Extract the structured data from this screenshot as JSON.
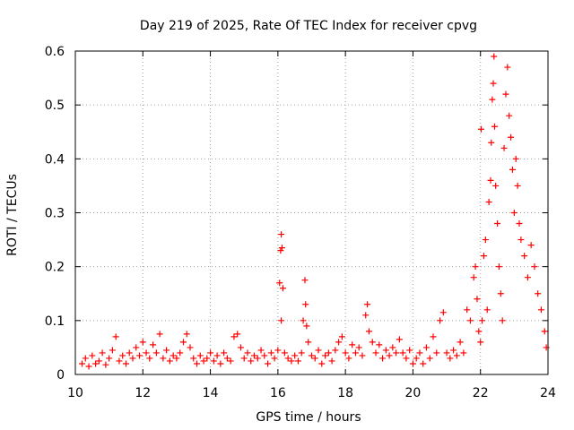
{
  "chart_data": {
    "type": "scatter",
    "title": "Day 219 of 2025, Rate Of TEC Index for receiver cpvg",
    "xlabel": "GPS time / hours",
    "ylabel": "ROTI / TECUs",
    "xlim": [
      10,
      24
    ],
    "ylim": [
      0,
      0.6
    ],
    "x_ticks": [
      "10",
      "12",
      "14",
      "16",
      "18",
      "20",
      "22",
      "24"
    ],
    "y_ticks": [
      "0",
      "0.1",
      "0.2",
      "0.3",
      "0.4",
      "0.5",
      "0.6"
    ],
    "grid": true,
    "marker": "plus",
    "marker_color": "#ff0000",
    "series": [
      {
        "points": [
          [
            10.2,
            0.02
          ],
          [
            10.3,
            0.03
          ],
          [
            10.4,
            0.015
          ],
          [
            10.5,
            0.035
          ],
          [
            10.6,
            0.02
          ],
          [
            10.7,
            0.025
          ],
          [
            10.8,
            0.04
          ],
          [
            10.9,
            0.018
          ],
          [
            11.0,
            0.03
          ],
          [
            11.1,
            0.045
          ],
          [
            11.2,
            0.07
          ],
          [
            11.3,
            0.025
          ],
          [
            11.4,
            0.035
          ],
          [
            11.5,
            0.02
          ],
          [
            11.6,
            0.04
          ],
          [
            11.7,
            0.03
          ],
          [
            11.8,
            0.05
          ],
          [
            11.9,
            0.035
          ],
          [
            12.0,
            0.06
          ],
          [
            12.1,
            0.04
          ],
          [
            12.2,
            0.03
          ],
          [
            12.3,
            0.055
          ],
          [
            12.4,
            0.04
          ],
          [
            12.5,
            0.075
          ],
          [
            12.6,
            0.03
          ],
          [
            12.7,
            0.045
          ],
          [
            12.8,
            0.025
          ],
          [
            12.9,
            0.035
          ],
          [
            13.0,
            0.03
          ],
          [
            13.1,
            0.04
          ],
          [
            13.2,
            0.06
          ],
          [
            13.3,
            0.075
          ],
          [
            13.4,
            0.05
          ],
          [
            13.5,
            0.03
          ],
          [
            13.6,
            0.02
          ],
          [
            13.7,
            0.035
          ],
          [
            13.8,
            0.025
          ],
          [
            13.9,
            0.03
          ],
          [
            14.0,
            0.04
          ],
          [
            14.1,
            0.025
          ],
          [
            14.2,
            0.035
          ],
          [
            14.3,
            0.02
          ],
          [
            14.4,
            0.04
          ],
          [
            14.5,
            0.03
          ],
          [
            14.6,
            0.025
          ],
          [
            14.7,
            0.07
          ],
          [
            14.8,
            0.075
          ],
          [
            14.9,
            0.05
          ],
          [
            15.0,
            0.03
          ],
          [
            15.1,
            0.04
          ],
          [
            15.2,
            0.025
          ],
          [
            15.3,
            0.035
          ],
          [
            15.4,
            0.03
          ],
          [
            15.5,
            0.045
          ],
          [
            15.6,
            0.035
          ],
          [
            15.7,
            0.02
          ],
          [
            15.8,
            0.04
          ],
          [
            15.9,
            0.03
          ],
          [
            16.0,
            0.045
          ],
          [
            16.05,
            0.17
          ],
          [
            16.08,
            0.23
          ],
          [
            16.1,
            0.26
          ],
          [
            16.12,
            0.235
          ],
          [
            16.15,
            0.16
          ],
          [
            16.1,
            0.1
          ],
          [
            16.2,
            0.04
          ],
          [
            16.3,
            0.03
          ],
          [
            16.4,
            0.025
          ],
          [
            16.5,
            0.035
          ],
          [
            16.6,
            0.025
          ],
          [
            16.7,
            0.04
          ],
          [
            16.75,
            0.1
          ],
          [
            16.8,
            0.175
          ],
          [
            16.82,
            0.13
          ],
          [
            16.85,
            0.09
          ],
          [
            16.9,
            0.06
          ],
          [
            17.0,
            0.035
          ],
          [
            17.1,
            0.03
          ],
          [
            17.2,
            0.045
          ],
          [
            17.3,
            0.02
          ],
          [
            17.4,
            0.035
          ],
          [
            17.5,
            0.04
          ],
          [
            17.6,
            0.025
          ],
          [
            17.7,
            0.045
          ],
          [
            17.8,
            0.06
          ],
          [
            17.9,
            0.07
          ],
          [
            18.0,
            0.04
          ],
          [
            18.1,
            0.03
          ],
          [
            18.2,
            0.055
          ],
          [
            18.3,
            0.04
          ],
          [
            18.4,
            0.05
          ],
          [
            18.5,
            0.035
          ],
          [
            18.6,
            0.11
          ],
          [
            18.65,
            0.13
          ],
          [
            18.7,
            0.08
          ],
          [
            18.8,
            0.06
          ],
          [
            18.9,
            0.04
          ],
          [
            19.0,
            0.055
          ],
          [
            19.1,
            0.03
          ],
          [
            19.2,
            0.045
          ],
          [
            19.3,
            0.035
          ],
          [
            19.4,
            0.05
          ],
          [
            19.5,
            0.04
          ],
          [
            19.6,
            0.065
          ],
          [
            19.7,
            0.04
          ],
          [
            19.8,
            0.03
          ],
          [
            19.9,
            0.045
          ],
          [
            20.0,
            0.02
          ],
          [
            20.1,
            0.03
          ],
          [
            20.2,
            0.04
          ],
          [
            20.3,
            0.02
          ],
          [
            20.4,
            0.05
          ],
          [
            20.5,
            0.03
          ],
          [
            20.6,
            0.07
          ],
          [
            20.7,
            0.04
          ],
          [
            20.8,
            0.1
          ],
          [
            20.9,
            0.115
          ],
          [
            21.0,
            0.04
          ],
          [
            21.1,
            0.03
          ],
          [
            21.2,
            0.045
          ],
          [
            21.3,
            0.035
          ],
          [
            21.4,
            0.06
          ],
          [
            21.5,
            0.04
          ],
          [
            21.6,
            0.12
          ],
          [
            21.7,
            0.1
          ],
          [
            21.8,
            0.18
          ],
          [
            21.85,
            0.2
          ],
          [
            21.9,
            0.14
          ],
          [
            21.95,
            0.08
          ],
          [
            22.0,
            0.06
          ],
          [
            22.02,
            0.455
          ],
          [
            22.05,
            0.1
          ],
          [
            22.1,
            0.22
          ],
          [
            22.15,
            0.25
          ],
          [
            22.2,
            0.12
          ],
          [
            22.25,
            0.32
          ],
          [
            22.3,
            0.36
          ],
          [
            22.32,
            0.43
          ],
          [
            22.35,
            0.51
          ],
          [
            22.38,
            0.54
          ],
          [
            22.4,
            0.59
          ],
          [
            22.42,
            0.46
          ],
          [
            22.45,
            0.35
          ],
          [
            22.5,
            0.28
          ],
          [
            22.55,
            0.2
          ],
          [
            22.6,
            0.15
          ],
          [
            22.65,
            0.1
          ],
          [
            22.7,
            0.42
          ],
          [
            22.75,
            0.52
          ],
          [
            22.8,
            0.57
          ],
          [
            22.85,
            0.48
          ],
          [
            22.9,
            0.44
          ],
          [
            22.95,
            0.38
          ],
          [
            23.0,
            0.3
          ],
          [
            23.05,
            0.4
          ],
          [
            23.1,
            0.35
          ],
          [
            23.15,
            0.28
          ],
          [
            23.2,
            0.25
          ],
          [
            23.3,
            0.22
          ],
          [
            23.4,
            0.18
          ],
          [
            23.5,
            0.24
          ],
          [
            23.6,
            0.2
          ],
          [
            23.7,
            0.15
          ],
          [
            23.8,
            0.12
          ],
          [
            23.9,
            0.08
          ],
          [
            23.95,
            0.05
          ]
        ]
      }
    ]
  }
}
